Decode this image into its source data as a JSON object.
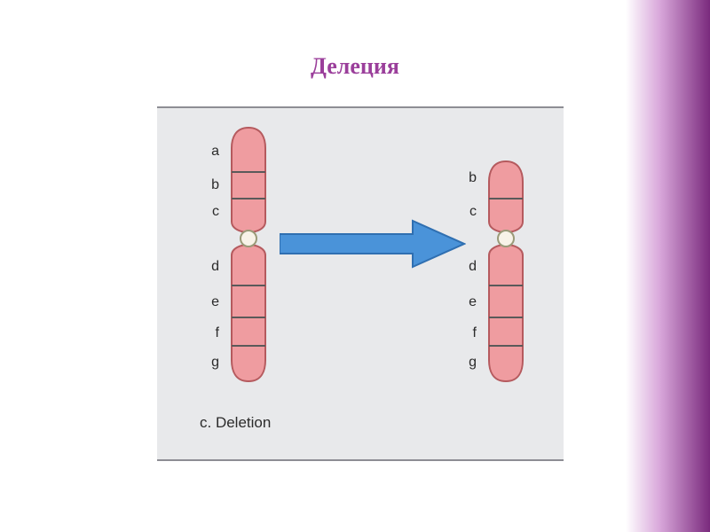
{
  "title": {
    "text": "Делеция",
    "color": "#9b3f9b",
    "fontsize": 26
  },
  "gradient": {
    "from": "#ffffff",
    "mid": "#d9a8db",
    "to": "#7a2a7d"
  },
  "figure": {
    "bg_color": "#e8e9eb",
    "border_color": "#8d8d94",
    "caption": {
      "text": "c. Deletion",
      "color": "#2b2b2b",
      "fontsize": 17
    },
    "seg_label_color": "#2b2b2b",
    "seg_label_fontsize": 16,
    "chrom_fill": "#ef9ca0",
    "chrom_stroke": "#b55a5e",
    "band_stroke": "#5a5a5a",
    "centromere_fill": "#f8f3e8",
    "centromere_stroke": "#9a9a78",
    "arrow": {
      "fill": "#4a93d9",
      "stroke": "#2f6fb1"
    },
    "left": {
      "segments": [
        {
          "label": "a"
        },
        {
          "label": "b"
        },
        {
          "label": "c"
        },
        {
          "label": "d"
        },
        {
          "label": "e"
        },
        {
          "label": "f"
        },
        {
          "label": "g"
        }
      ]
    },
    "right": {
      "segments": [
        {
          "label": "b"
        },
        {
          "label": "c"
        },
        {
          "label": "d"
        },
        {
          "label": "e"
        },
        {
          "label": "f"
        },
        {
          "label": "g"
        }
      ]
    }
  }
}
